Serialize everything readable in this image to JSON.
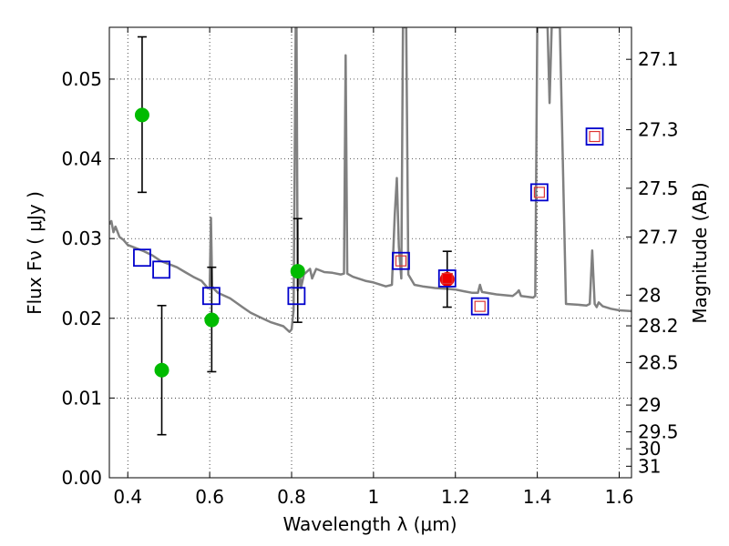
{
  "chart_data": {
    "type": "scatter",
    "xlabel": "Wavelength  λ (μm)",
    "ylabel": "Flux  Fν  ( μJy )",
    "ylabel_right": "Magnitude (AB)",
    "xlim": [
      0.355,
      1.63
    ],
    "ylim": [
      0.0,
      0.0565
    ],
    "grid": true,
    "x_ticks": [
      {
        "value": 0.4,
        "label": "0.4"
      },
      {
        "value": 0.6,
        "label": "0.6"
      },
      {
        "value": 0.8,
        "label": "0.8"
      },
      {
        "value": 1.0,
        "label": "1"
      },
      {
        "value": 1.2,
        "label": "1.2"
      },
      {
        "value": 1.4,
        "label": "1.4"
      },
      {
        "value": 1.6,
        "label": "1.6"
      }
    ],
    "y_ticks": [
      {
        "value": 0.0,
        "label": "0.00"
      },
      {
        "value": 0.01,
        "label": "0.01"
      },
      {
        "value": 0.02,
        "label": "0.02"
      },
      {
        "value": 0.03,
        "label": "0.03"
      },
      {
        "value": 0.04,
        "label": "0.04"
      },
      {
        "value": 0.05,
        "label": "0.05"
      }
    ],
    "mag_ticks": [
      {
        "value": 27.1,
        "label": "27.1"
      },
      {
        "value": 27.3,
        "label": "27.3"
      },
      {
        "value": 27.5,
        "label": "27.5"
      },
      {
        "value": 27.7,
        "label": "27.7"
      },
      {
        "value": 28.0,
        "label": "28"
      },
      {
        "value": 28.2,
        "label": "28.2"
      },
      {
        "value": 28.5,
        "label": "28.5"
      },
      {
        "value": 29.0,
        "label": "29"
      },
      {
        "value": 29.5,
        "label": "29.5"
      },
      {
        "value": 30.0,
        "label": "30"
      },
      {
        "value": 31.0,
        "label": "31"
      }
    ],
    "series": [
      {
        "name": "model SED",
        "kind": "line",
        "color": "#808080",
        "points": [
          [
            0.355,
            0.0318
          ],
          [
            0.36,
            0.0322
          ],
          [
            0.365,
            0.0308
          ],
          [
            0.37,
            0.0315
          ],
          [
            0.38,
            0.0302
          ],
          [
            0.39,
            0.0298
          ],
          [
            0.4,
            0.0292
          ],
          [
            0.42,
            0.0288
          ],
          [
            0.44,
            0.0284
          ],
          [
            0.46,
            0.0279
          ],
          [
            0.48,
            0.0272
          ],
          [
            0.5,
            0.0268
          ],
          [
            0.52,
            0.0264
          ],
          [
            0.54,
            0.0258
          ],
          [
            0.56,
            0.0252
          ],
          [
            0.58,
            0.0247
          ],
          [
            0.595,
            0.0238
          ],
          [
            0.6,
            0.0238
          ],
          [
            0.603,
            0.0326
          ],
          [
            0.606,
            0.024
          ],
          [
            0.612,
            0.0236
          ],
          [
            0.62,
            0.0232
          ],
          [
            0.65,
            0.0225
          ],
          [
            0.68,
            0.0214
          ],
          [
            0.7,
            0.0207
          ],
          [
            0.72,
            0.0202
          ],
          [
            0.75,
            0.0195
          ],
          [
            0.78,
            0.019
          ],
          [
            0.795,
            0.0183
          ],
          [
            0.8,
            0.0186
          ],
          [
            0.805,
            0.021
          ],
          [
            0.81,
            0.0565
          ],
          [
            0.812,
            0.0565
          ],
          [
            0.815,
            0.0235
          ],
          [
            0.82,
            0.026
          ],
          [
            0.823,
            0.0238
          ],
          [
            0.83,
            0.0255
          ],
          [
            0.845,
            0.0262
          ],
          [
            0.85,
            0.025
          ],
          [
            0.86,
            0.0262
          ],
          [
            0.88,
            0.0258
          ],
          [
            0.9,
            0.0257
          ],
          [
            0.92,
            0.0255
          ],
          [
            0.928,
            0.0256
          ],
          [
            0.932,
            0.053
          ],
          [
            0.936,
            0.0256
          ],
          [
            0.95,
            0.0252
          ],
          [
            0.98,
            0.0247
          ],
          [
            1.0,
            0.0245
          ],
          [
            1.03,
            0.024
          ],
          [
            1.045,
            0.0242
          ],
          [
            1.052,
            0.033
          ],
          [
            1.057,
            0.0376
          ],
          [
            1.062,
            0.029
          ],
          [
            1.068,
            0.025
          ],
          [
            1.072,
            0.0565
          ],
          [
            1.08,
            0.0565
          ],
          [
            1.085,
            0.0255
          ],
          [
            1.1,
            0.0242
          ],
          [
            1.12,
            0.024
          ],
          [
            1.15,
            0.0238
          ],
          [
            1.18,
            0.0237
          ],
          [
            1.2,
            0.0236
          ],
          [
            1.22,
            0.0234
          ],
          [
            1.24,
            0.0232
          ],
          [
            1.255,
            0.0232
          ],
          [
            1.26,
            0.0242
          ],
          [
            1.265,
            0.0233
          ],
          [
            1.3,
            0.023
          ],
          [
            1.34,
            0.0228
          ],
          [
            1.35,
            0.0232
          ],
          [
            1.355,
            0.0235
          ],
          [
            1.36,
            0.0228
          ],
          [
            1.39,
            0.0226
          ],
          [
            1.395,
            0.0228
          ],
          [
            1.4,
            0.0565
          ],
          [
            1.425,
            0.0565
          ],
          [
            1.43,
            0.047
          ],
          [
            1.435,
            0.0565
          ],
          [
            1.455,
            0.0565
          ],
          [
            1.47,
            0.0218
          ],
          [
            1.5,
            0.0217
          ],
          [
            1.52,
            0.0216
          ],
          [
            1.528,
            0.0218
          ],
          [
            1.534,
            0.0285
          ],
          [
            1.54,
            0.0218
          ],
          [
            1.545,
            0.0214
          ],
          [
            1.55,
            0.022
          ],
          [
            1.56,
            0.0215
          ],
          [
            1.58,
            0.0212
          ],
          [
            1.6,
            0.021
          ],
          [
            1.63,
            0.0209
          ]
        ]
      },
      {
        "name": "observed (green)",
        "kind": "point",
        "color": "#00bb00",
        "points": [
          {
            "x": 0.435,
            "y": 0.0455,
            "err_lo": 0.0097,
            "err_hi": 0.0098
          },
          {
            "x": 0.483,
            "y": 0.0135,
            "err_lo": 0.0081,
            "err_hi": 0.0081
          },
          {
            "x": 0.605,
            "y": 0.0198,
            "err_lo": 0.0065,
            "err_hi": 0.0066
          },
          {
            "x": 0.815,
            "y": 0.0259,
            "err_lo": 0.0064,
            "err_hi": 0.0066
          }
        ]
      },
      {
        "name": "observed (red)",
        "kind": "point",
        "color": "#ee0000",
        "points": [
          {
            "x": 1.18,
            "y": 0.0249,
            "err_lo": 0.0035,
            "err_hi": 0.0035
          }
        ]
      },
      {
        "name": "model photometry (blue squares)",
        "kind": "square",
        "color": "#0000cc",
        "points": [
          [
            0.435,
            0.0276
          ],
          [
            0.482,
            0.0261
          ],
          [
            0.604,
            0.0228
          ],
          [
            0.812,
            0.0228
          ],
          [
            1.067,
            0.0272
          ],
          [
            1.18,
            0.025
          ],
          [
            1.26,
            0.0215
          ],
          [
            1.405,
            0.0358
          ],
          [
            1.54,
            0.0428
          ]
        ]
      },
      {
        "name": "model photometry (red squares)",
        "kind": "small-square",
        "color": "#dd3333",
        "points": [
          [
            1.067,
            0.0272
          ],
          [
            1.18,
            0.025
          ],
          [
            1.26,
            0.0215
          ],
          [
            1.405,
            0.0358
          ],
          [
            1.54,
            0.0428
          ]
        ]
      }
    ]
  }
}
